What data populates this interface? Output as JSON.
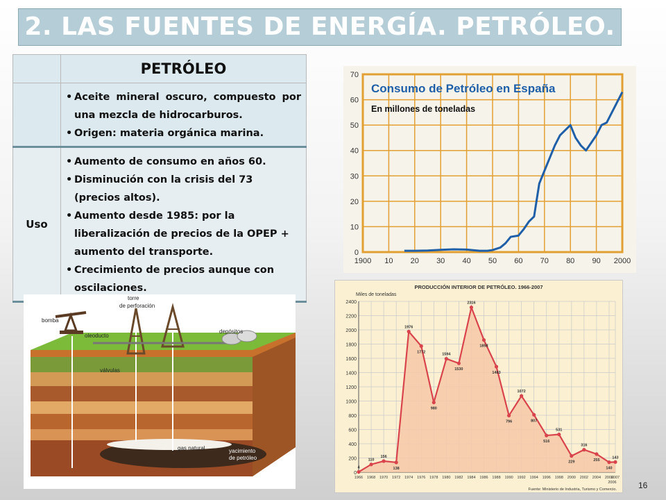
{
  "slide": {
    "title": "2. LAS FUENTES DE ENERGÍA. PETRÓLEO.",
    "page_number": "16"
  },
  "table": {
    "header": "PETRÓLEO",
    "rows": [
      {
        "label": "",
        "items": [
          "Aceite mineral oscuro, compuesto por una mezcla de hidrocarburos.",
          "Origen: materia orgánica marina."
        ]
      },
      {
        "label": "Uso",
        "items": [
          "Aumento de consumo en años 60.",
          "Disminución con la crisis del 73 (precios altos).",
          "Aumento desde 1985: por la liberalización de precios de la OPEP + aumento del transporte.",
          "Crecimiento de precios aunque con oscilaciones."
        ]
      }
    ]
  },
  "chart_data": [
    {
      "type": "line",
      "title": "Consumo de Petróleo en España",
      "subtitle": "En millones de toneladas",
      "xlim": [
        1900,
        2000
      ],
      "ylim": [
        0,
        70
      ],
      "x_ticks": [
        "1900",
        "10",
        "20",
        "30",
        "40",
        "50",
        "60",
        "70",
        "80",
        "90",
        "2000"
      ],
      "y_ticks": [
        "0",
        "10",
        "20",
        "30",
        "40",
        "50",
        "60",
        "70"
      ],
      "grid": true,
      "line_color": "#1f5fa8",
      "accent_color": "#e3a032",
      "series": [
        {
          "x": [
            1916,
            1920,
            1925,
            1930,
            1935,
            1940,
            1945,
            1948,
            1950,
            1953,
            1955,
            1957,
            1960,
            1962,
            1964,
            1966,
            1968,
            1970,
            1972,
            1974,
            1976,
            1978,
            1980,
            1982,
            1984,
            1986,
            1988,
            1990,
            1992,
            1994,
            1996,
            1998,
            2000
          ],
          "values": [
            0.5,
            0.5,
            0.6,
            0.9,
            1.1,
            1.0,
            0.5,
            0.5,
            0.8,
            1.8,
            3.5,
            6,
            6.5,
            9,
            12,
            14,
            27,
            32,
            37,
            42,
            46,
            48,
            50,
            45,
            42,
            40,
            43,
            46,
            50,
            51,
            55,
            59,
            63
          ]
        }
      ]
    },
    {
      "type": "area",
      "title": "PRODUCCIÓN INTERIOR DE PETRÓLEO. 1966-2007",
      "ylabel": "Miles de toneladas",
      "source": "Fuente: Ministerio de Industria, Turismo y Comercio.",
      "ylim": [
        0,
        2400
      ],
      "y_ticks": [
        "0",
        "200",
        "400",
        "600",
        "800",
        "1000",
        "1200",
        "1400",
        "1600",
        "1800",
        "2000",
        "2200",
        "2400"
      ],
      "x_ticks": [
        "1966",
        "1968",
        "1970",
        "1972",
        "1974",
        "1976",
        "1978",
        "1980",
        "1982",
        "1984",
        "1986",
        "1988",
        "1990",
        "1992",
        "1994",
        "1996",
        "1998",
        "2000",
        "2002",
        "2004",
        "2006",
        "2007"
      ],
      "x_extra_label": "2006",
      "grid": true,
      "fill_color": "#f7c9a8",
      "line_color": "#d9434c",
      "series": [
        {
          "x": [
            1966,
            1968,
            1970,
            1972,
            1974,
            1976,
            1978,
            1980,
            1982,
            1984,
            1986,
            1988,
            1990,
            1992,
            1994,
            1996,
            1998,
            2000,
            2002,
            2004,
            2006,
            2007
          ],
          "values": [
            4,
            110,
            156,
            138,
            1976,
            1772,
            980,
            1594,
            1530,
            2316,
            1858,
            1483,
            796,
            1072,
            807,
            516,
            531,
            229,
            316,
            255,
            140,
            143
          ],
          "labels": [
            "4",
            "110",
            "156",
            "138",
            "1976",
            "1772",
            "980",
            "1594",
            "1530",
            "2316",
            "1858",
            "1483",
            "796",
            "1072",
            "807",
            "516",
            "531",
            "229",
            "316",
            "255",
            "140",
            "143"
          ]
        }
      ]
    }
  ],
  "illustration": {
    "labels": {
      "bomba": "bomba",
      "torre": "torre",
      "torre2": "de perforación",
      "oleoducto": "oleoducto",
      "depositos": "depósitos",
      "valvulas": "válvulas",
      "gas": "gas natural",
      "yac1": "yacimiento",
      "yac2": "de petróleo"
    }
  }
}
